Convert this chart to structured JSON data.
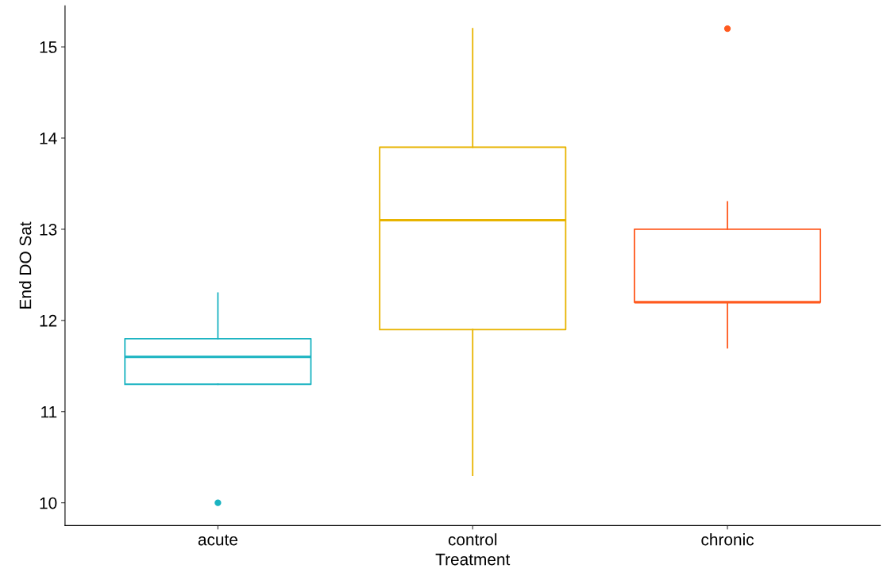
{
  "chart_data": {
    "type": "box",
    "xlabel": "Treatment",
    "ylabel": "End DO Sat",
    "categories": [
      "acute",
      "control",
      "chronic"
    ],
    "colors": [
      "#1ab3c1",
      "#e8b400",
      "#ff5a1f"
    ],
    "boxes": [
      {
        "low": 11.3,
        "q1": 11.3,
        "median": 11.6,
        "q3": 11.8,
        "high": 12.3,
        "outliers": [
          10.0
        ]
      },
      {
        "low": 10.3,
        "q1": 11.9,
        "median": 13.1,
        "q3": 13.9,
        "high": 15.2
      },
      {
        "low": 11.7,
        "q1": 12.2,
        "median": 12.2,
        "q3": 13.0,
        "high": 13.3,
        "outliers": [
          15.2
        ]
      }
    ],
    "ylim": [
      9.75,
      15.45
    ],
    "yticks": [
      10,
      11,
      12,
      13,
      14,
      15
    ],
    "grid": false,
    "legend": false
  }
}
